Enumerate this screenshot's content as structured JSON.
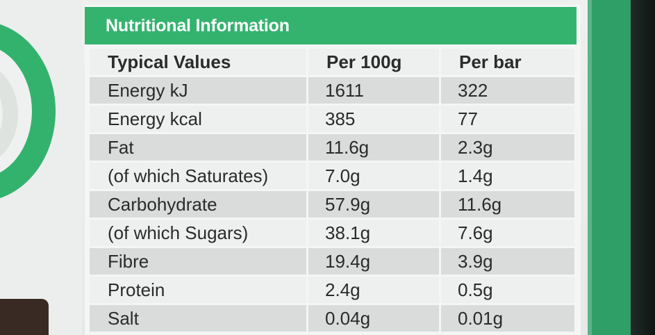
{
  "panel": {
    "title": "Nutritional Information"
  },
  "table": {
    "headers": [
      "Typical Values",
      "Per 100g",
      "Per bar"
    ],
    "rows": [
      [
        "Energy kJ",
        "1611",
        "322"
      ],
      [
        "Energy kcal",
        "385",
        "77"
      ],
      [
        "Fat",
        "11.6g",
        "2.3g"
      ],
      [
        "(of which Saturates)",
        "7.0g",
        "1.4g"
      ],
      [
        "Carbohydrate",
        "57.9g",
        "11.6g"
      ],
      [
        "(of which Sugars)",
        "38.1g",
        "7.6g"
      ],
      [
        "Fibre",
        "19.4g",
        "3.9g"
      ],
      [
        "Protein",
        "2.4g",
        "0.5g"
      ],
      [
        "Salt",
        "0.04g",
        "0.01g"
      ]
    ]
  },
  "colors": {
    "accent_green": "#34b36f",
    "row_shade": "#d9dcdb",
    "row_light": "#eef0ef",
    "text": "#2a2a2a"
  }
}
